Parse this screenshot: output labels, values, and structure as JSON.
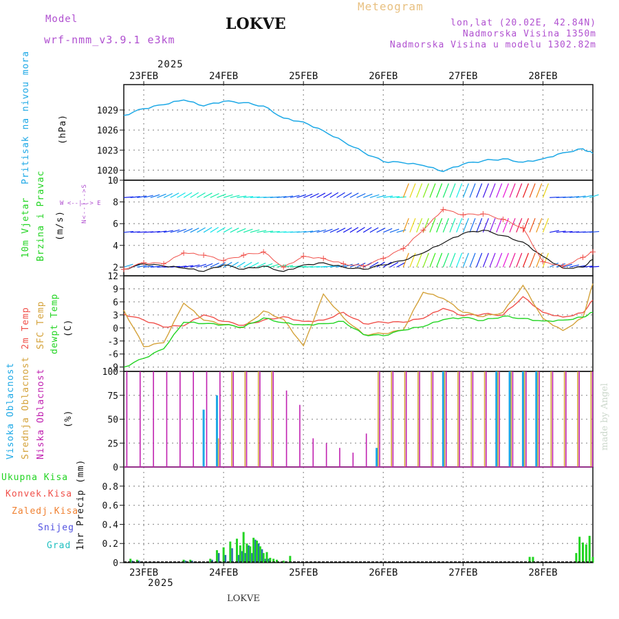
{
  "header": {
    "title": "Meteogram",
    "station": "LOKVE",
    "model_label": "Model",
    "model_name": "wrf-nmm_v3.9.1  e3km",
    "lonlat": "lon,lat (20.02E, 42.84N)",
    "elevation": "Nadmorska Visina 1350m",
    "model_elevation": "Nadmorska Visina u modelu 1302.82m",
    "year_top": "2025",
    "year_bottom": "2025",
    "footer_station": "LOKVE",
    "credit": "made by Angel"
  },
  "colors": {
    "pressure": "#1ca8e6",
    "temp2m": "#f0504a",
    "sfc": "#d4a23a",
    "dewpt": "#22d422",
    "wind": "#111111",
    "gust": "#f0504a",
    "title": "#e8c080",
    "model": "#b050d0",
    "purple": "#c020b0"
  },
  "chart_data": [
    {
      "id": "pressure",
      "type": "line",
      "title": "Pritisak na nivou mora",
      "ylabel": "(hPa)",
      "ylim": [
        1018.5,
        1032.8
      ],
      "yticks": [
        1020,
        1023,
        1026,
        1029
      ],
      "x": [
        0,
        6,
        12,
        18,
        24,
        30,
        36,
        42,
        48,
        54,
        60,
        66,
        72,
        78,
        84,
        90,
        96,
        102,
        108,
        114,
        120,
        126,
        132,
        138,
        141
      ],
      "series": [
        {
          "name": "SLP",
          "values": [
            1028.2,
            1029.2,
            1029.8,
            1030.5,
            1029.6,
            1030.3,
            1030.1,
            1029.6,
            1027.8,
            1027.2,
            1025.9,
            1024.3,
            1022.7,
            1021.3,
            1021.1,
            1020.7,
            1019.8,
            1020.9,
            1021.4,
            1021.7,
            1021.2,
            1021.7,
            1022.6,
            1023.2,
            1022.5
          ]
        }
      ]
    },
    {
      "id": "wind",
      "type": "line",
      "title": "10m Vjetar",
      "subtitle": "Brzina i Pravac",
      "ylabel": "(m/s)",
      "ylim": [
        1.2,
        10
      ],
      "yticks": [
        2,
        4,
        6,
        8,
        10
      ],
      "x": [
        0,
        6,
        12,
        18,
        24,
        30,
        36,
        42,
        48,
        54,
        60,
        66,
        72,
        78,
        84,
        90,
        96,
        102,
        108,
        114,
        120,
        126,
        132,
        138,
        141
      ],
      "series": [
        {
          "name": "Brzina",
          "values": [
            1.8,
            2.3,
            2.1,
            1.9,
            1.6,
            2.2,
            1.8,
            2.1,
            1.6,
            2.2,
            2.4,
            2.0,
            1.8,
            2.2,
            2.6,
            3.3,
            4.2,
            5.1,
            5.4,
            4.9,
            4.3,
            3.0,
            1.9,
            2.0,
            2.7
          ]
        },
        {
          "name": "Udar",
          "values": [
            1.8,
            2.4,
            2.3,
            3.3,
            3.1,
            2.6,
            3.1,
            3.4,
            2.0,
            3.0,
            2.8,
            2.3,
            2.1,
            2.8,
            3.7,
            5.4,
            7.3,
            6.8,
            6.9,
            6.4,
            5.6,
            2.5,
            2.1,
            2.9,
            3.4
          ]
        }
      ],
      "compass": "W <--|--> E",
      "barb_levels": [
        "2",
        "5.2",
        "8.4"
      ]
    },
    {
      "id": "temperature",
      "type": "line",
      "title": "2m Temp",
      "subtitle": "SFC Temp",
      "subtitle2": "dewpt Temp",
      "ylabel": "(C)",
      "ylim": [
        -10,
        12
      ],
      "yticks": [
        -9,
        -6,
        -3,
        0,
        3,
        6,
        9,
        12
      ],
      "x": [
        0,
        6,
        12,
        18,
        24,
        30,
        36,
        42,
        48,
        54,
        60,
        66,
        72,
        78,
        84,
        90,
        96,
        102,
        108,
        114,
        120,
        126,
        132,
        138,
        141
      ],
      "series": [
        {
          "name": "2m Temp",
          "values": [
            3.2,
            1.8,
            0.2,
            0.5,
            3.0,
            1.5,
            0.6,
            1.8,
            2.6,
            1.5,
            1.8,
            3.6,
            1.0,
            1.3,
            1.3,
            2.2,
            4.5,
            2.8,
            3.2,
            3.0,
            7.2,
            3.6,
            2.5,
            3.5,
            6.4
          ]
        },
        {
          "name": "SFC Temp",
          "values": [
            4.1,
            -4.3,
            -3.4,
            5.7,
            1.8,
            0.8,
            0.1,
            3.9,
            2.0,
            -4.1,
            7.8,
            2.4,
            -1.5,
            -1.3,
            -0.5,
            8.2,
            6.8,
            3.6,
            2.6,
            3.6,
            9.8,
            2.2,
            -0.6,
            2.4,
            10.2
          ]
        },
        {
          "name": "dewpt Temp",
          "values": [
            -9.0,
            -7.0,
            -4.8,
            1.3,
            1.0,
            0.7,
            0.2,
            2.3,
            1.2,
            0.7,
            1.0,
            1.5,
            -1.5,
            -1.8,
            -0.5,
            0.3,
            1.9,
            2.4,
            1.7,
            2.7,
            2.2,
            1.6,
            1.8,
            2.5,
            3.6
          ]
        }
      ]
    },
    {
      "id": "clouds",
      "type": "bar",
      "title": "Visoka Oblacnost",
      "subtitle": "Srednja Oblacnost",
      "subtitle2": "Niska Oblacnost",
      "ylabel": "(%)",
      "ylim": [
        0,
        100
      ],
      "yticks": [
        0,
        25,
        50,
        75,
        100
      ],
      "categories": [
        0,
        4,
        8,
        12,
        16,
        20,
        24,
        28,
        32,
        36,
        40,
        44,
        48,
        52,
        56,
        60,
        64,
        68,
        72,
        76,
        80,
        84,
        88,
        92,
        96,
        100,
        104,
        108,
        112,
        116,
        120,
        124,
        128,
        132,
        136,
        140
      ],
      "series": [
        {
          "name": "Visoka",
          "values": [
            0,
            0,
            0,
            0,
            0,
            0,
            60,
            75,
            0,
            0,
            0,
            0,
            0,
            0,
            0,
            0,
            0,
            0,
            0,
            20,
            0,
            0,
            0,
            0,
            100,
            0,
            0,
            0,
            100,
            100,
            100,
            100,
            0,
            0,
            0,
            0
          ]
        },
        {
          "name": "Srednja",
          "values": [
            0,
            0,
            0,
            0,
            0,
            0,
            0,
            30,
            100,
            100,
            100,
            100,
            0,
            0,
            0,
            0,
            0,
            0,
            0,
            100,
            100,
            100,
            100,
            100,
            100,
            100,
            100,
            100,
            100,
            100,
            100,
            100,
            100,
            100,
            100,
            100
          ]
        },
        {
          "name": "Niska",
          "values": [
            100,
            100,
            100,
            100,
            100,
            100,
            100,
            100,
            100,
            100,
            100,
            100,
            80,
            65,
            30,
            25,
            20,
            15,
            35,
            100,
            100,
            100,
            100,
            100,
            100,
            100,
            100,
            100,
            100,
            100,
            100,
            100,
            100,
            100,
            100,
            100
          ]
        }
      ]
    },
    {
      "id": "precip",
      "type": "bar",
      "title": "Ukupna Kisa",
      "subtitle": "Konvek.Kisa",
      "subtitle2": "Zaledj.Kisa",
      "subtitle3": "Snijeg",
      "subtitle4": "Grad",
      "ylabel": "1hr Precip (mm)",
      "ylim": [
        0,
        1.0
      ],
      "yticks": [
        0,
        0.2,
        0.4,
        0.6,
        0.8
      ],
      "categories": [
        2,
        4,
        18,
        20,
        26,
        28,
        30,
        32,
        34,
        35,
        36,
        37,
        38,
        39,
        40,
        41,
        42,
        43,
        44,
        45,
        46,
        48,
        50,
        122,
        123,
        136,
        137,
        138,
        139,
        140,
        141
      ],
      "series": [
        {
          "name": "Ukupna",
          "values": [
            0.04,
            0.03,
            0.03,
            0.03,
            0.04,
            0.13,
            0.16,
            0.22,
            0.25,
            0.18,
            0.32,
            0.2,
            0.17,
            0.26,
            0.23,
            0.17,
            0.1,
            0.11,
            0.05,
            0.04,
            0.03,
            0.02,
            0.07,
            0.06,
            0.06,
            0.1,
            0.27,
            0.21,
            0.19,
            0.28,
            0.06
          ]
        },
        {
          "name": "Snijeg",
          "values": [
            0.02,
            0.02,
            0.02,
            0.02,
            0.03,
            0.1,
            0.08,
            0.15,
            0.08,
            0.12,
            0.1,
            0.18,
            0.1,
            0.24,
            0.2,
            0.14,
            0.04,
            0.04,
            0.0,
            0.0,
            0.0,
            0.0,
            0.0,
            0.0,
            0.0,
            0.0,
            0.0,
            0.0,
            0.0,
            0.0,
            0.0
          ]
        }
      ]
    }
  ],
  "xaxis": {
    "days": [
      "23FEB",
      "24FEB",
      "25FEB",
      "26FEB",
      "27FEB",
      "28FEB"
    ],
    "day_hours": [
      6,
      30,
      54,
      78,
      102,
      126
    ],
    "range_hours": [
      0,
      141
    ]
  },
  "side": {
    "pressure": [
      "Pritisak na nivou mora",
      "(hPa)"
    ],
    "wind": [
      "10m Vjetar",
      "Brzina i Pravac",
      "(m/s)"
    ],
    "temp": [
      "2m Temp",
      "SFC Temp",
      "dewpt Temp",
      "(C)"
    ],
    "clouds": [
      "Visoka Oblacnost",
      "Srednja Oblacnost",
      "Niska Oblacnost",
      "(%)"
    ],
    "precip": [
      "Ukupna Kisa",
      "Konvek.Kisa",
      "Zaledj.Kisa",
      "Snijeg",
      "Grad",
      "1hr Precip (mm)"
    ],
    "compass_v": "N<--|-->S"
  }
}
